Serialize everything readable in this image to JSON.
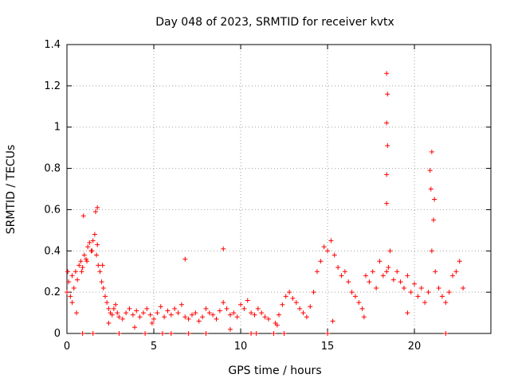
{
  "chart_data": {
    "type": "scatter",
    "title": "Day 048 of 2023, SRMTID for receiver kvtx",
    "xlabel": "GPS time / hours",
    "ylabel": "SRMTID / TECUs",
    "xlim": [
      0,
      24.4
    ],
    "ylim": [
      0,
      1.4
    ],
    "xticks": [
      0,
      5,
      10,
      15,
      20
    ],
    "xtick_labels": [
      "0",
      "5",
      "10",
      "15",
      "20"
    ],
    "yticks": [
      0,
      0.2,
      0.4,
      0.6,
      0.8,
      1.0,
      1.2,
      1.4
    ],
    "ytick_labels": [
      "0",
      "0.2",
      "0.4",
      "0.6",
      "0.8",
      "1",
      "1.2",
      "1.4"
    ],
    "grid": true,
    "marker": "+",
    "color": "#ff0000",
    "series": [
      {
        "name": "SRMTID",
        "x": [
          0.0,
          0.1,
          0.2,
          0.3,
          0.4,
          0.5,
          0.6,
          0.7,
          0.8,
          0.9,
          1.0,
          1.1,
          1.2,
          1.3,
          1.4,
          1.5,
          1.6,
          1.7,
          1.8,
          1.9,
          2.0,
          2.1,
          2.2,
          2.3,
          2.4,
          2.5,
          2.6,
          2.7,
          2.8,
          2.9,
          3.0,
          3.2,
          3.4,
          3.6,
          3.8,
          4.0,
          4.2,
          4.4,
          4.6,
          4.8,
          5.0,
          5.2,
          5.4,
          5.6,
          5.8,
          6.0,
          6.2,
          6.4,
          6.6,
          6.8,
          7.0,
          7.2,
          7.4,
          7.6,
          7.8,
          8.0,
          8.2,
          8.4,
          8.6,
          8.8,
          9.0,
          9.2,
          9.4,
          9.6,
          9.8,
          10.0,
          10.2,
          10.4,
          10.6,
          10.8,
          11.0,
          11.2,
          11.4,
          11.6,
          12.0,
          12.2,
          12.4,
          12.6,
          12.8,
          13.0,
          13.2,
          13.4,
          13.6,
          13.8,
          14.0,
          14.2,
          14.4,
          14.6,
          14.8,
          15.0,
          15.2,
          15.4,
          15.6,
          15.8,
          16.0,
          16.2,
          16.4,
          16.6,
          16.8,
          17.0,
          17.2,
          17.4,
          17.6,
          17.8,
          18.0,
          18.2,
          18.4,
          18.5,
          18.6,
          18.8,
          19.0,
          19.2,
          19.4,
          19.6,
          19.8,
          20.0,
          20.2,
          20.4,
          20.6,
          20.8,
          21.0,
          21.2,
          21.4,
          21.6,
          21.8,
          22.0,
          22.2,
          22.4,
          22.6,
          22.8,
          0.05,
          0.3,
          0.55,
          0.85,
          1.15,
          1.45,
          1.75,
          2.05,
          0.95,
          1.65,
          1.75,
          9.0,
          6.8,
          18.4,
          18.4,
          18.45,
          18.4,
          18.45,
          18.4,
          20.9,
          21.0,
          21.1,
          20.95,
          21.15,
          1.5,
          3.0,
          4.5,
          6.0,
          7.0,
          8.0,
          10.6,
          11.9,
          12.5,
          15.0,
          21.8,
          4.9,
          0.9,
          2.4,
          3.9,
          5.5,
          9.4,
          10.9,
          12.1,
          15.3,
          17.1,
          19.6
        ],
        "y": [
          0.2,
          0.25,
          0.18,
          0.28,
          0.22,
          0.3,
          0.26,
          0.33,
          0.35,
          0.32,
          0.38,
          0.36,
          0.42,
          0.44,
          0.4,
          0.45,
          0.48,
          0.38,
          0.33,
          0.3,
          0.25,
          0.22,
          0.18,
          0.15,
          0.12,
          0.1,
          0.09,
          0.12,
          0.14,
          0.1,
          0.08,
          0.07,
          0.1,
          0.12,
          0.09,
          0.11,
          0.08,
          0.1,
          0.12,
          0.09,
          0.07,
          0.1,
          0.13,
          0.08,
          0.11,
          0.09,
          0.12,
          0.1,
          0.14,
          0.08,
          0.07,
          0.09,
          0.1,
          0.06,
          0.08,
          0.12,
          0.1,
          0.09,
          0.07,
          0.11,
          0.15,
          0.12,
          0.09,
          0.1,
          0.08,
          0.14,
          0.12,
          0.16,
          0.1,
          0.09,
          0.12,
          0.1,
          0.08,
          0.07,
          0.05,
          0.09,
          0.14,
          0.18,
          0.2,
          0.17,
          0.15,
          0.12,
          0.1,
          0.08,
          0.13,
          0.2,
          0.3,
          0.35,
          0.42,
          0.4,
          0.45,
          0.38,
          0.32,
          0.28,
          0.3,
          0.25,
          0.2,
          0.18,
          0.15,
          0.12,
          0.28,
          0.25,
          0.3,
          0.22,
          0.35,
          0.28,
          0.3,
          0.32,
          0.4,
          0.26,
          0.3,
          0.25,
          0.22,
          0.28,
          0.2,
          0.24,
          0.18,
          0.22,
          0.15,
          0.2,
          0.4,
          0.3,
          0.22,
          0.18,
          0.15,
          0.2,
          0.28,
          0.3,
          0.35,
          0.22,
          0.3,
          0.15,
          0.1,
          0.3,
          0.35,
          0.4,
          0.43,
          0.33,
          0.57,
          0.59,
          0.61,
          0.41,
          0.36,
          0.63,
          0.77,
          0.91,
          1.02,
          1.16,
          1.26,
          0.79,
          0.88,
          0.55,
          0.7,
          0.65,
          0.0,
          0.0,
          0.0,
          0.0,
          0.0,
          0.0,
          0.0,
          0.0,
          0.0,
          0.0,
          0.0,
          0.05,
          0.0,
          0.05,
          0.03,
          0.0,
          0.02,
          0.0,
          0.04,
          0.06,
          0.08,
          0.1
        ]
      }
    ]
  }
}
